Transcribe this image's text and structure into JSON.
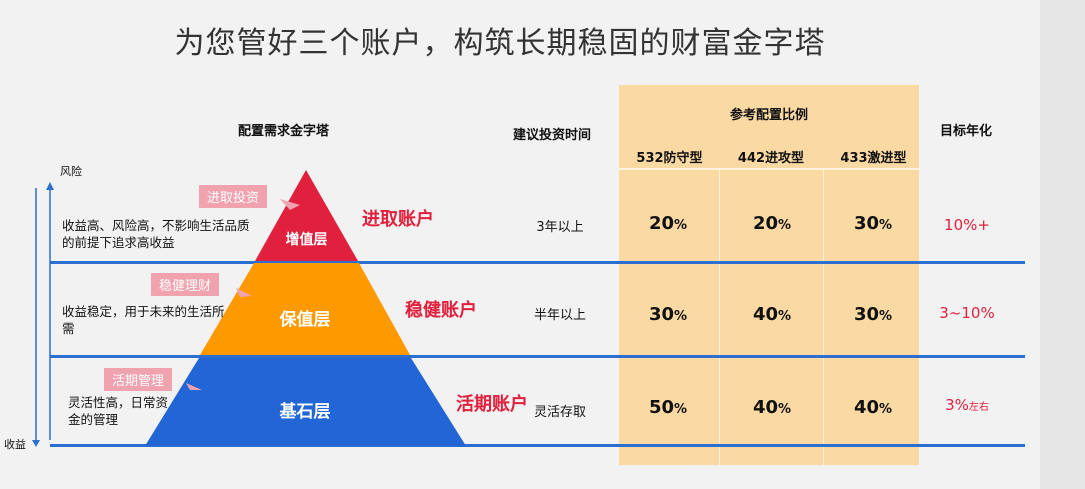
{
  "title": "为您管好三个账户，构筑长期稳固的财富金字塔",
  "headers": {
    "pyramid": "配置需求金字塔",
    "period": "建议投资时间",
    "reference": "参考配置比例",
    "target": "目标年化",
    "models": [
      "532防守型",
      "442进攻型",
      "433激进型"
    ]
  },
  "axis": {
    "top": "风险",
    "bottom": "收益"
  },
  "pct_suffix": "%",
  "rows": [
    {
      "tag": "进取投资",
      "layer": "增值层",
      "account": "进取账户",
      "desc": "收益高、风险高，不影响生活品质的前提下追求高收益",
      "period": "3年以上",
      "values": [
        "20",
        "20",
        "30"
      ],
      "target": "10%+",
      "target_note": "",
      "color": "#e0203c"
    },
    {
      "tag": "稳健理财",
      "layer": "保值层",
      "account": "稳健账户",
      "desc": "收益稳定，用于未来的生活所需",
      "period": "半年以上",
      "values": [
        "30",
        "40",
        "30"
      ],
      "target": "3~10%",
      "target_note": "",
      "color": "#ff9900"
    },
    {
      "tag": "活期管理",
      "layer": "基石层",
      "account": "活期账户",
      "desc": "灵活性高，日常资金的管理",
      "period": "灵活存取",
      "values": [
        "50",
        "40",
        "40"
      ],
      "target": "3%",
      "target_note": "左右",
      "color": "#2266d6"
    }
  ]
}
